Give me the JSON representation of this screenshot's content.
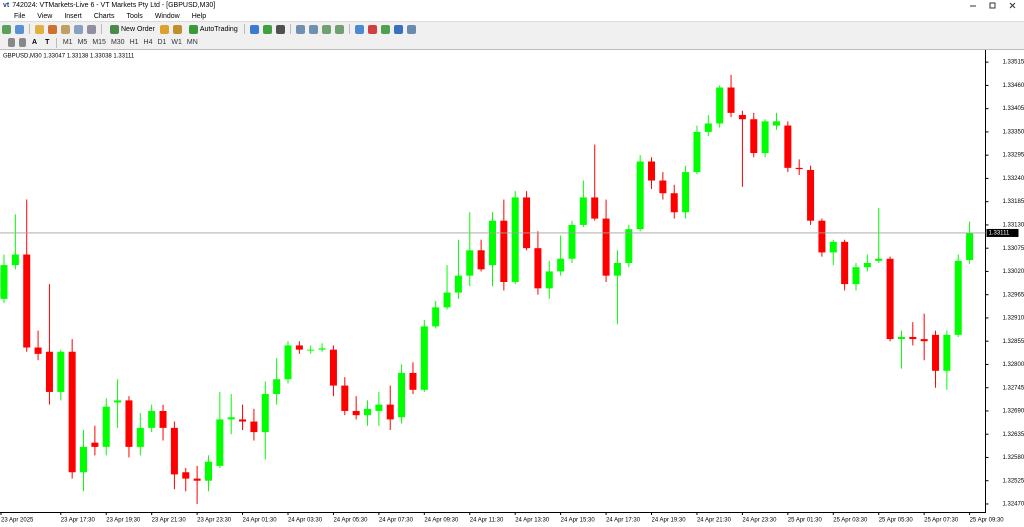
{
  "window": {
    "title": "742024: VTMarkets-Live 6 - VT Markets Pty Ltd - [GBPUSD,M30]",
    "menu": [
      "File",
      "View",
      "Insert",
      "Charts",
      "Tools",
      "Window",
      "Help"
    ],
    "toolbar": {
      "new_order": "New Order",
      "autotrading": "AutoTrading",
      "tools": [
        "A",
        "T"
      ],
      "timeframes": [
        "M1",
        "M5",
        "M15",
        "M30",
        "H1",
        "H4",
        "D1",
        "W1",
        "MN"
      ]
    }
  },
  "chart_data": {
    "type": "candlestick",
    "title": "GBPUSD,M30 1.33047 1.33138 1.33038 1.33111",
    "categories": [
      "23 Apr 2025",
      null,
      null,
      null,
      null,
      "23 Apr 17:30",
      null,
      null,
      null,
      "23 Apr 19:30",
      null,
      null,
      null,
      "23 Apr 21:30",
      null,
      null,
      null,
      "23 Apr 23:30",
      null,
      null,
      null,
      "24 Apr 01:30",
      null,
      null,
      null,
      "24 Apr 03:30",
      null,
      null,
      null,
      "24 Apr 05:30",
      null,
      null,
      null,
      "24 Apr 07:30",
      null,
      null,
      null,
      "24 Apr 09:30",
      null,
      null,
      null,
      "24 Apr 11:30",
      null,
      null,
      null,
      "24 Apr 13:30",
      null,
      null,
      null,
      "24 Apr 15:30",
      null,
      null,
      null,
      "24 Apr 17:30",
      null,
      null,
      null,
      "24 Apr 19:30",
      null,
      null,
      null,
      "24 Apr 21:30",
      null,
      null,
      null,
      "24 Apr 23:30",
      null,
      null,
      null,
      "25 Apr 01:30",
      null,
      null,
      null,
      "25 Apr 03:30",
      null,
      null,
      null,
      "25 Apr 05:30",
      null,
      null,
      null,
      "25 Apr 07:30",
      null,
      null,
      null,
      "25 Apr 09:30"
    ],
    "open": [
      1.32955,
      1.33035,
      1.3306,
      1.3284,
      1.3283,
      1.32735,
      1.3283,
      1.32545,
      1.32615,
      1.32605,
      1.3271,
      1.32715,
      1.32605,
      1.3265,
      1.3269,
      1.3265,
      1.32545,
      1.3253,
      1.32525,
      1.3256,
      1.3267,
      1.3267,
      1.32665,
      1.3264,
      1.3273,
      1.32765,
      1.32845,
      1.32833,
      1.32835,
      1.32835,
      1.3275,
      1.3269,
      1.3268,
      1.3269,
      1.32705,
      1.32675,
      1.3278,
      1.3274,
      1.3289,
      1.32935,
      1.3297,
      1.3301,
      1.3307,
      1.33035,
      1.3314,
      1.32995,
      1.33195,
      1.33075,
      1.3298,
      1.3302,
      1.3305,
      1.3313,
      1.33195,
      1.33145,
      1.3301,
      1.3304,
      1.3312,
      1.3328,
      1.33235,
      1.33205,
      1.3316,
      1.33255,
      1.3335,
      1.3337,
      1.33455,
      1.3339,
      1.3338,
      1.333,
      1.33365,
      1.33365,
      1.33265,
      1.3326,
      1.3314,
      1.33065,
      1.3309,
      1.3299,
      1.3303,
      1.33045,
      1.3305,
      1.3286,
      1.32865,
      1.3286,
      1.3287,
      1.32785,
      1.3287,
      1.33047
    ],
    "high": [
      1.3306,
      1.33155,
      1.3319,
      1.3288,
      1.3299,
      1.32835,
      1.3286,
      1.32645,
      1.32655,
      1.3272,
      1.32765,
      1.32725,
      1.32685,
      1.32705,
      1.32705,
      1.32665,
      1.32555,
      1.3256,
      1.32585,
      1.32735,
      1.3273,
      1.32705,
      1.32695,
      1.3276,
      1.32815,
      1.32855,
      1.32855,
      1.32845,
      1.3285,
      1.32845,
      1.3277,
      1.32725,
      1.32715,
      1.32735,
      1.3275,
      1.328,
      1.32805,
      1.32905,
      1.3295,
      1.33035,
      1.33095,
      1.3316,
      1.33095,
      1.3316,
      1.3319,
      1.3321,
      1.3321,
      1.33115,
      1.33045,
      1.33105,
      1.3314,
      1.33235,
      1.3332,
      1.3319,
      1.3307,
      1.3313,
      1.33295,
      1.3329,
      1.33255,
      1.33225,
      1.3327,
      1.33365,
      1.3339,
      1.3346,
      1.33485,
      1.334,
      1.33395,
      1.3338,
      1.33395,
      1.33375,
      1.33285,
      1.3327,
      1.33145,
      1.33095,
      1.33095,
      1.3304,
      1.3306,
      1.3317,
      1.33055,
      1.3288,
      1.329,
      1.3292,
      1.3288,
      1.3288,
      1.3306,
      1.33138
    ],
    "low": [
      1.32945,
      1.33025,
      1.3283,
      1.3281,
      1.32705,
      1.32715,
      1.3253,
      1.325,
      1.32585,
      1.32585,
      1.3265,
      1.3258,
      1.32585,
      1.3264,
      1.3262,
      1.32505,
      1.325,
      1.3247,
      1.325,
      1.32555,
      1.32635,
      1.32645,
      1.3262,
      1.32575,
      1.32705,
      1.32755,
      1.32825,
      1.32825,
      1.3283,
      1.32725,
      1.3268,
      1.3267,
      1.32655,
      1.32655,
      1.32645,
      1.3266,
      1.3273,
      1.32735,
      1.32885,
      1.3293,
      1.32955,
      1.32985,
      1.3302,
      1.32985,
      1.32975,
      1.3299,
      1.3307,
      1.32965,
      1.32955,
      1.3301,
      1.3304,
      1.33125,
      1.3314,
      1.32995,
      1.32895,
      1.3303,
      1.33115,
      1.33215,
      1.3319,
      1.33145,
      1.33145,
      1.3325,
      1.3334,
      1.3336,
      1.33385,
      1.3322,
      1.3329,
      1.3329,
      1.33355,
      1.33255,
      1.33248,
      1.3313,
      1.33055,
      1.33035,
      1.32975,
      1.32975,
      1.3302,
      1.3304,
      1.32855,
      1.3279,
      1.32845,
      1.3281,
      1.32745,
      1.3274,
      1.32865,
      1.33038
    ],
    "close": [
      1.33035,
      1.3306,
      1.3284,
      1.32825,
      1.32735,
      1.3283,
      1.32545,
      1.32605,
      1.32605,
      1.327,
      1.32715,
      1.32605,
      1.3265,
      1.3269,
      1.3265,
      1.3254,
      1.3253,
      1.32525,
      1.3257,
      1.3267,
      1.32675,
      1.32665,
      1.3264,
      1.3273,
      1.32765,
      1.32845,
      1.32835,
      1.32835,
      1.32838,
      1.3275,
      1.3269,
      1.3268,
      1.32695,
      1.32705,
      1.3267,
      1.3278,
      1.3274,
      1.3289,
      1.32935,
      1.3297,
      1.3301,
      1.3307,
      1.33025,
      1.3314,
      1.32995,
      1.33195,
      1.33075,
      1.3298,
      1.3302,
      1.3305,
      1.3313,
      1.33195,
      1.33145,
      1.3301,
      1.3304,
      1.3312,
      1.3328,
      1.33235,
      1.33205,
      1.3316,
      1.33255,
      1.3335,
      1.3337,
      1.33455,
      1.33395,
      1.3338,
      1.333,
      1.33375,
      1.33375,
      1.33265,
      1.33262,
      1.3314,
      1.33065,
      1.3309,
      1.3299,
      1.3303,
      1.3304,
      1.3305,
      1.3286,
      1.32865,
      1.3286,
      1.32855,
      1.32785,
      1.3287,
      1.33045,
      1.33111
    ],
    "up_color": "#00ff00",
    "down_color": "#ff0000",
    "ylim": [
      1.32451,
      1.33539
    ],
    "yticks": [
      {
        "value": 1.3247,
        "label": "1.32470"
      },
      1.32525,
      {
        "value": 1.3258,
        "label": "1.32580"
      },
      1.32635,
      {
        "value": 1.3269,
        "label": "1.32690"
      },
      1.32745,
      {
        "value": 1.328,
        "label": "1.32800"
      },
      1.32855,
      {
        "value": 1.3291,
        "label": "1.32910"
      },
      1.32965,
      {
        "value": 1.3302,
        "label": "1.33020"
      },
      1.33075,
      {
        "value": 1.3313,
        "label": "1.33130"
      },
      1.33185,
      {
        "value": 1.3324,
        "label": "1.33240"
      },
      1.33295,
      {
        "value": 1.3335,
        "label": "1.33350"
      },
      1.33405,
      {
        "value": 1.3346,
        "label": "1.33460"
      },
      1.33515
    ],
    "grid": false
  }
}
